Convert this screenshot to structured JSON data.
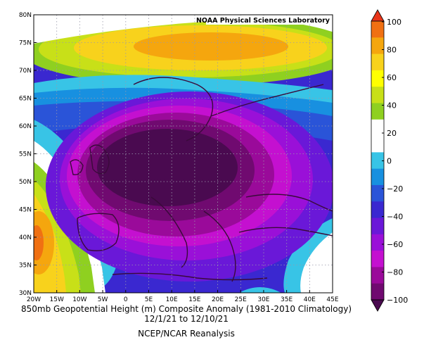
{
  "map": {
    "credit": "NOAA Physical Sciences Laboratory",
    "lat_labels": [
      "80N",
      "75N",
      "70N",
      "65N",
      "60N",
      "55N",
      "50N",
      "45N",
      "40N",
      "35N",
      "30N"
    ],
    "lon_labels": [
      "20W",
      "15W",
      "10W",
      "5W",
      "0",
      "5E",
      "10E",
      "15E",
      "20E",
      "25E",
      "30E",
      "35E",
      "40E",
      "45E"
    ],
    "extent": {
      "lon": [
        -20,
        45
      ],
      "lat": [
        30,
        80
      ]
    }
  },
  "colorbar": {
    "ticks": [
      "100",
      "80",
      "60",
      "40",
      "20",
      "0",
      "−20",
      "−40",
      "−60",
      "−80",
      "−100"
    ],
    "colors": [
      "#e8351a",
      "#f07012",
      "#f5a60e",
      "#f8d21c",
      "#ffff00",
      "#c8e018",
      "#8fd020",
      "#ffffff",
      "#ffffff",
      "#38c4e6",
      "#1890e0",
      "#2a54d8",
      "#3a28d0",
      "#6a18d8",
      "#9a10d8",
      "#c410d0",
      "#9a0a9a",
      "#700a70",
      "#4a0a50"
    ]
  },
  "caption": {
    "line1": "850mb Geopotential Height (m) Composite Anomaly (1981-2010 Climatology)",
    "line2": "12/1/21   to 12/10/21",
    "line3": "NCEP/NCAR Reanalysis"
  }
}
